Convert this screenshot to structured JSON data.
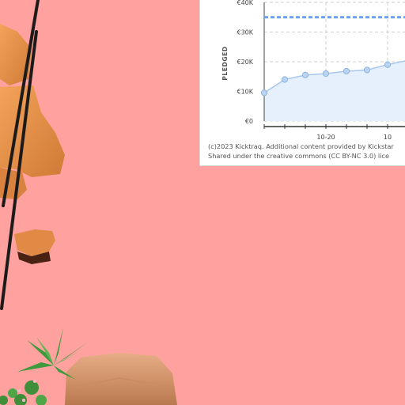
{
  "chart_data": {
    "type": "line",
    "ylabel": "PLEDGED",
    "y_tick_labels": [
      "€0",
      "€10K",
      "€20K",
      "€30K",
      "€40K"
    ],
    "y_ticks": [
      0,
      10000,
      20000,
      30000,
      40000
    ],
    "ylim": [
      0,
      40000
    ],
    "x_tick_labels": [
      "10-20",
      "10"
    ],
    "x_tick_index": [
      3,
      6
    ],
    "x": [
      0,
      1,
      2,
      3,
      4,
      5,
      6,
      7
    ],
    "series": [
      {
        "values": [
          9500,
          14000,
          15500,
          16000,
          16800,
          17200,
          19000,
          20500
        ]
      }
    ],
    "goal_line": 35000,
    "grid": true,
    "colors": {
      "line": "#a8c8ec",
      "marker": "#b8d4f0",
      "marker_stroke": "#8fb3dd",
      "area": "#e6f0fc",
      "goal": "#6f9fe0",
      "grid": "#cfcfcf"
    }
  },
  "credit": {
    "line1": "(c)2023 Kicktraq. Additional content provided by Kickstar",
    "line2": "Shared under the creative commons (CC BY-NC 3.0) lice"
  },
  "scene": {
    "background_color": "#ffa19f"
  }
}
